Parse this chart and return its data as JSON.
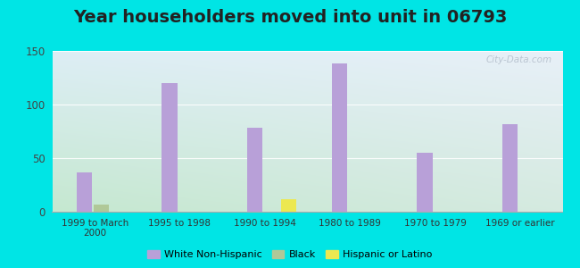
{
  "title": "Year householders moved into unit in 06793",
  "categories": [
    "1999 to March\n2000",
    "1995 to 1998",
    "1990 to 1994",
    "1980 to 1989",
    "1970 to 1979",
    "1969 or earlier"
  ],
  "white_non_hispanic": [
    37,
    120,
    78,
    138,
    55,
    82
  ],
  "black": [
    7,
    0,
    0,
    0,
    0,
    0
  ],
  "hispanic_or_latino": [
    0,
    0,
    12,
    0,
    0,
    0
  ],
  "bar_color_white": "#b8a0d8",
  "bar_color_black": "#b0c898",
  "bar_color_hispanic": "#ece850",
  "background_outer": "#00e5e5",
  "background_inner_topleft": "#d8ede8",
  "background_inner_topright": "#ddeaf8",
  "background_inner_bottom": "#c8e8cc",
  "ylim": [
    0,
    150
  ],
  "yticks": [
    0,
    50,
    100,
    150
  ],
  "title_fontsize": 14,
  "watermark": "City-Data.com"
}
